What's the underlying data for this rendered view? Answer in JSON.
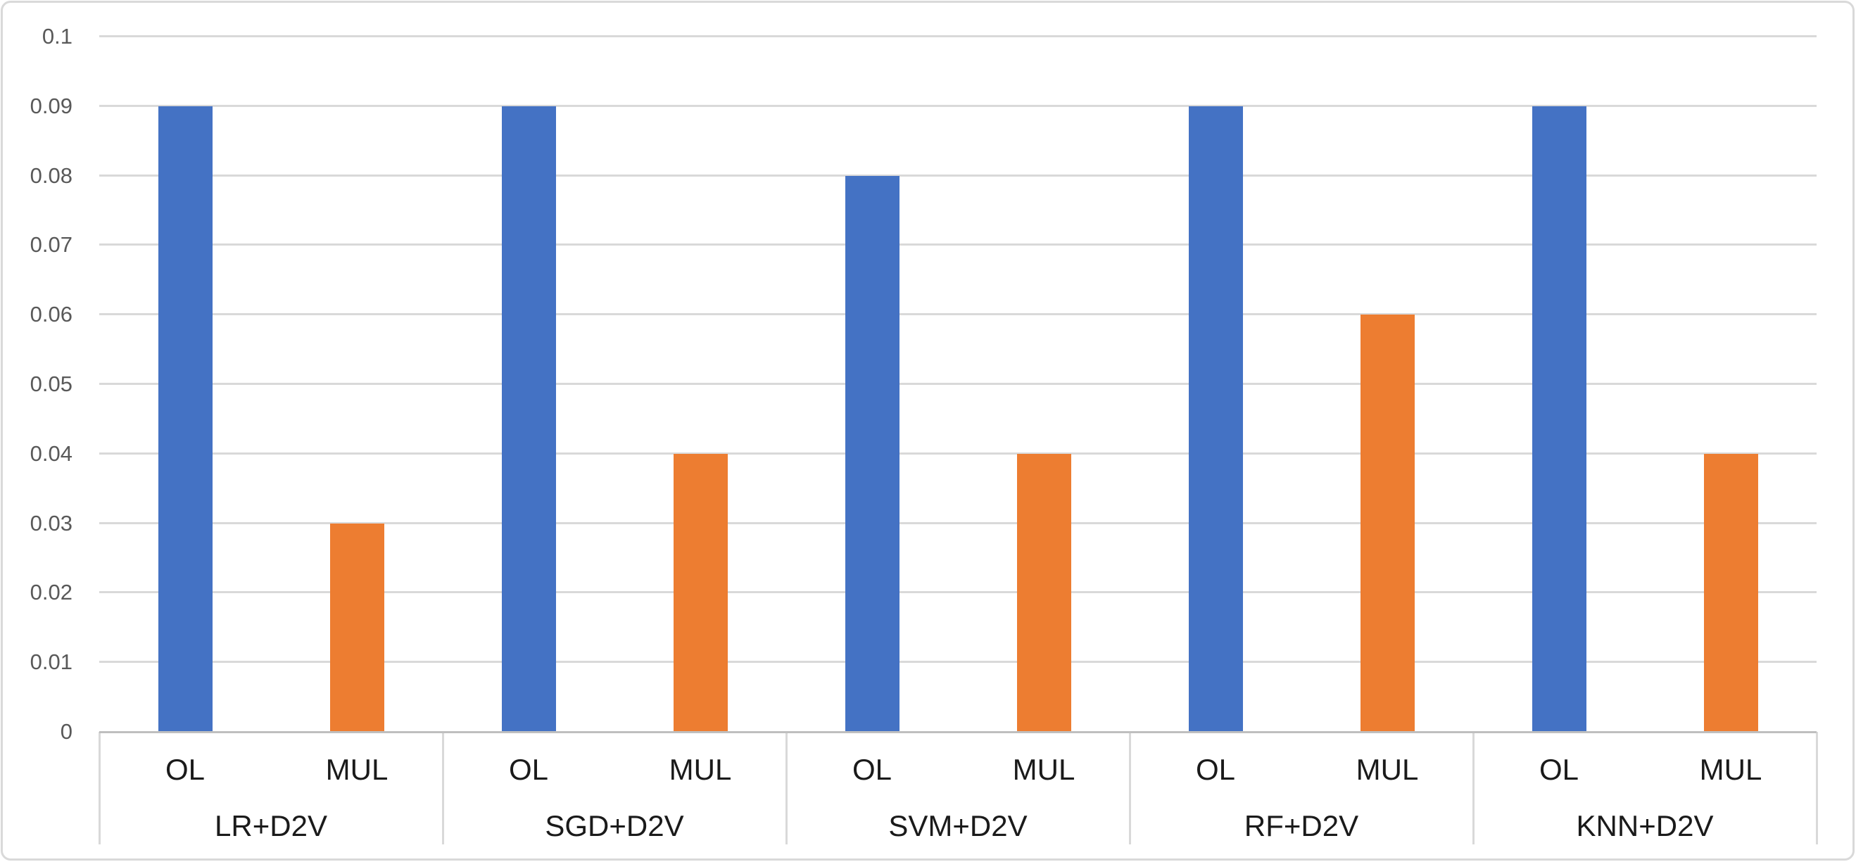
{
  "chart_data": {
    "type": "bar",
    "title": "",
    "xlabel": "",
    "ylabel": "",
    "legend": "none",
    "grid": true,
    "sub_categories": [
      "OL",
      "MUL"
    ],
    "groups": [
      {
        "label": "LR+D2V",
        "bars": [
          {
            "label": "OL",
            "series": "OL",
            "value": 0.09
          },
          {
            "label": "MUL",
            "series": "MUL",
            "value": 0.03
          }
        ]
      },
      {
        "label": "SGD+D2V",
        "bars": [
          {
            "label": "OL",
            "series": "OL",
            "value": 0.09
          },
          {
            "label": "MUL",
            "series": "MUL",
            "value": 0.04
          }
        ]
      },
      {
        "label": "SVM+D2V",
        "bars": [
          {
            "label": "OL",
            "series": "OL",
            "value": 0.08
          },
          {
            "label": "MUL",
            "series": "MUL",
            "value": 0.04
          }
        ]
      },
      {
        "label": "RF+D2V",
        "bars": [
          {
            "label": "OL",
            "series": "OL",
            "value": 0.09
          },
          {
            "label": "MUL",
            "series": "MUL",
            "value": 0.06
          }
        ]
      },
      {
        "label": "KNN+D2V",
        "bars": [
          {
            "label": "OL",
            "series": "OL",
            "value": 0.09
          },
          {
            "label": "MUL",
            "series": "MUL",
            "value": 0.04
          }
        ]
      }
    ],
    "series_colors": {
      "OL": "#4472C4",
      "MUL": "#ED7D31"
    },
    "y_axis": {
      "min": 0,
      "max": 0.1,
      "step": 0.01,
      "tick_labels": [
        "0",
        "0.01",
        "0.02",
        "0.03",
        "0.04",
        "0.05",
        "0.06",
        "0.07",
        "0.08",
        "0.09",
        "0.1"
      ]
    },
    "colors": {
      "background": "#FFFFFF",
      "chart_border": "#D9D9D9",
      "gridline": "#D9D9D9",
      "axis_line": "#BFBFBF",
      "tick_text": "#595959",
      "category_text": "#1A1A1A"
    }
  }
}
